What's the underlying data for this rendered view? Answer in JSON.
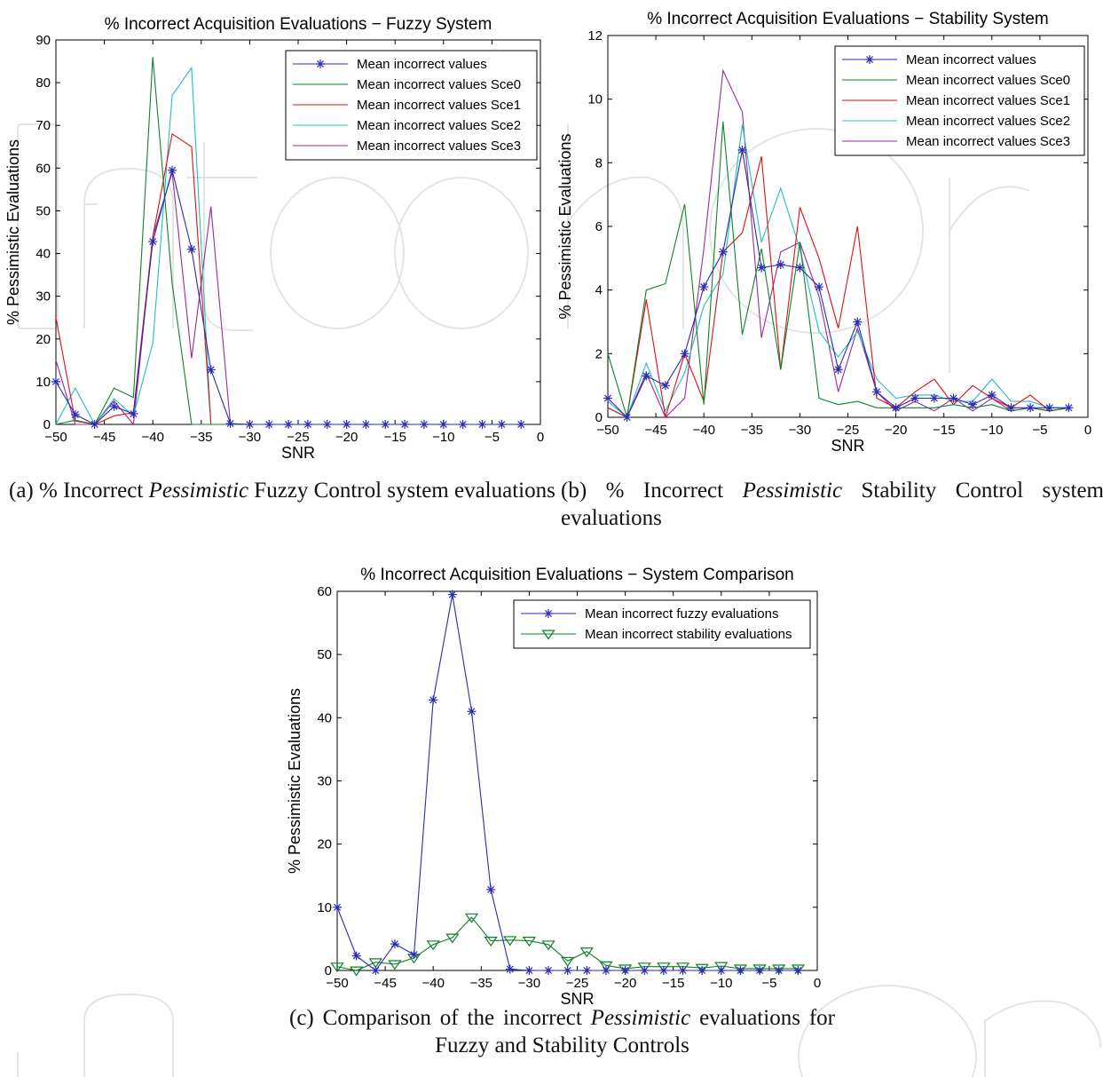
{
  "colors": {
    "blue": "#2b2bb5",
    "green": "#11802b",
    "red": "#e01010",
    "cyan": "#1fc1c1",
    "purple": "#9b2a9b",
    "axis": "#000000",
    "watermark": "#dcdcdc"
  },
  "captions": {
    "a": {
      "prefix": "(a) % Incorrect ",
      "em": "Pessimistic",
      "suffix": " Fuzzy Control system evaluations"
    },
    "b": {
      "prefix": "(b) % Incorrect ",
      "em": "Pessimistic",
      "suffix": " Stability Control system evaluations"
    },
    "c": {
      "prefix": "(c) Comparison of the incorrect ",
      "em": "Pessimistic",
      "suffix": " evaluations for Fuzzy and Stability Controls"
    }
  },
  "chart_data": [
    {
      "id": "a",
      "type": "line",
      "title": "% Incorrect Acquisition Evaluations − Fuzzy System",
      "xlabel": "SNR",
      "ylabel": "% Pessimistic Evaluations",
      "xlim": [
        -50,
        0
      ],
      "ylim": [
        0,
        90
      ],
      "xticks": [
        -50,
        -45,
        -40,
        -35,
        -30,
        -25,
        -20,
        -15,
        -10,
        -5,
        0
      ],
      "yticks": [
        0,
        10,
        20,
        30,
        40,
        50,
        60,
        70,
        80,
        90
      ],
      "grid": false,
      "legend_position": "top-right",
      "x": [
        -50,
        -48,
        -46,
        -44,
        -42,
        -40,
        -38,
        -36,
        -34,
        -32,
        -30,
        -28,
        -26,
        -24,
        -22,
        -20,
        -18,
        -16,
        -14,
        -12,
        -10,
        -8,
        -6,
        -4,
        -2
      ],
      "series": [
        {
          "name": "Mean incorrect values",
          "color": "blue",
          "marker": "star",
          "values": [
            10,
            2.3,
            0,
            4.2,
            2.5,
            42.8,
            59.5,
            41,
            12.8,
            0.2,
            0,
            0,
            0,
            0,
            0,
            0,
            0,
            0,
            0,
            0,
            0,
            0,
            0,
            0,
            0
          ]
        },
        {
          "name": "Mean incorrect values Sce0",
          "color": "green",
          "marker": "none",
          "values": [
            0,
            1,
            0,
            8.5,
            6.3,
            86,
            33,
            0,
            0,
            0,
            0,
            0,
            0,
            0,
            0,
            0,
            0,
            0,
            0,
            0,
            0,
            0,
            0,
            0,
            0
          ]
        },
        {
          "name": "Mean incorrect values Sce1",
          "color": "red",
          "marker": "none",
          "values": [
            25,
            0.8,
            0,
            2,
            2.8,
            44,
            68,
            65,
            0,
            0,
            0,
            0,
            0,
            0,
            0,
            0,
            0,
            0,
            0,
            0,
            0,
            0,
            0,
            0,
            0
          ]
        },
        {
          "name": "Mean incorrect values Sce2",
          "color": "cyan",
          "marker": "none",
          "values": [
            0,
            8.5,
            0,
            6,
            2,
            19,
            77,
            83.5,
            0,
            0,
            0,
            0,
            0,
            0,
            0,
            0,
            0,
            0,
            0,
            0,
            0,
            0,
            0,
            0,
            0
          ]
        },
        {
          "name": "Mean incorrect values Sce3",
          "color": "purple",
          "marker": "none",
          "values": [
            15,
            0,
            0,
            5.5,
            0,
            44,
            59,
            15.5,
            51,
            0,
            0,
            0,
            0,
            0,
            0,
            0,
            0,
            0,
            0,
            0,
            0,
            0,
            0,
            0,
            0
          ]
        }
      ]
    },
    {
      "id": "b",
      "type": "line",
      "title": "% Incorrect Acquisition Evaluations − Stability System",
      "xlabel": "SNR",
      "ylabel": "% Pessimistic Evaluations",
      "xlim": [
        -50,
        0
      ],
      "ylim": [
        0,
        12
      ],
      "xticks": [
        -50,
        -45,
        -40,
        -35,
        -30,
        -25,
        -20,
        -15,
        -10,
        -5,
        0
      ],
      "yticks": [
        0,
        2,
        4,
        6,
        8,
        10,
        12
      ],
      "grid": false,
      "legend_position": "top-right",
      "x": [
        -50,
        -48,
        -46,
        -44,
        -42,
        -40,
        -38,
        -36,
        -34,
        -32,
        -30,
        -28,
        -26,
        -24,
        -22,
        -20,
        -18,
        -16,
        -14,
        -12,
        -10,
        -8,
        -6,
        -4,
        -2
      ],
      "series": [
        {
          "name": "Mean incorrect values",
          "color": "blue",
          "marker": "star",
          "values": [
            0.6,
            0,
            1.3,
            1,
            2,
            4.1,
            5.2,
            8.4,
            4.7,
            4.8,
            4.7,
            4.1,
            1.5,
            3,
            0.8,
            0.3,
            0.6,
            0.6,
            0.6,
            0.4,
            0.7,
            0.3,
            0.3,
            0.3,
            0.3
          ]
        },
        {
          "name": "Mean incorrect values Sce0",
          "color": "green",
          "marker": "none",
          "values": [
            2,
            0,
            4,
            4.2,
            6.7,
            0.4,
            9.3,
            2.6,
            5.3,
            1.5,
            5.5,
            0.6,
            0.4,
            0.5,
            0.3,
            0.3,
            0.3,
            0.3,
            0.4,
            0.3,
            0.4,
            0.2,
            0.3,
            0.2,
            0.3
          ]
        },
        {
          "name": "Mean incorrect values Sce1",
          "color": "red",
          "marker": "none",
          "values": [
            0.3,
            0,
            3.7,
            0,
            2,
            0.5,
            5.2,
            5.8,
            8.2,
            1.5,
            6.6,
            5,
            2.8,
            6,
            0.6,
            0.3,
            0.8,
            1.2,
            0.4,
            1,
            0.6,
            0.3,
            0.7,
            0.2,
            0.3
          ]
        },
        {
          "name": "Mean incorrect values Sce2",
          "color": "cyan",
          "marker": "none",
          "values": [
            0.5,
            0,
            1.7,
            0.2,
            1.4,
            3.5,
            4.5,
            9.2,
            5.5,
            7.2,
            5.3,
            2.7,
            1.9,
            2.7,
            1.2,
            0.6,
            0.7,
            0.7,
            0.5,
            0.5,
            1.2,
            0.5,
            0.5,
            0.3,
            0.3
          ]
        },
        {
          "name": "Mean incorrect values Sce3",
          "color": "purple",
          "marker": "none",
          "values": [
            0.3,
            0,
            1.4,
            0,
            0.6,
            5.3,
            10.9,
            9.6,
            2.5,
            5.2,
            5.5,
            3.8,
            0.8,
            2.8,
            0.8,
            0.2,
            0.5,
            0.2,
            0.6,
            0.2,
            0.6,
            0.2,
            0.3,
            0.2,
            0.3
          ]
        }
      ]
    },
    {
      "id": "c",
      "type": "line",
      "title": "% Incorrect Acquisition Evaluations − System Comparison",
      "xlabel": "SNR",
      "ylabel": "% Pessimistic Evaluations",
      "xlim": [
        -50,
        0
      ],
      "ylim": [
        0,
        60
      ],
      "xticks": [
        -50,
        -45,
        -40,
        -35,
        -30,
        -25,
        -20,
        -15,
        -10,
        -5,
        0
      ],
      "yticks": [
        0,
        10,
        20,
        30,
        40,
        50,
        60
      ],
      "grid": false,
      "legend_position": "top-right",
      "x": [
        -50,
        -48,
        -46,
        -44,
        -42,
        -40,
        -38,
        -36,
        -34,
        -32,
        -30,
        -28,
        -26,
        -24,
        -22,
        -20,
        -18,
        -16,
        -14,
        -12,
        -10,
        -8,
        -6,
        -4,
        -2
      ],
      "series": [
        {
          "name": "Mean incorrect fuzzy evaluations",
          "color": "blue",
          "marker": "star",
          "values": [
            10,
            2.3,
            0,
            4.2,
            2.5,
            42.8,
            59.5,
            41,
            12.8,
            0.2,
            0,
            0,
            0,
            0,
            0,
            0,
            0,
            0,
            0,
            0,
            0,
            0,
            0,
            0,
            0
          ]
        },
        {
          "name": "Mean incorrect stability evaluations",
          "color": "green",
          "marker": "triangle",
          "values": [
            0.6,
            0,
            1.3,
            1,
            2,
            4.1,
            5.2,
            8.4,
            4.7,
            4.8,
            4.7,
            4.1,
            1.5,
            3,
            0.8,
            0.3,
            0.6,
            0.6,
            0.6,
            0.4,
            0.7,
            0.3,
            0.3,
            0.3,
            0.3
          ]
        }
      ]
    }
  ]
}
